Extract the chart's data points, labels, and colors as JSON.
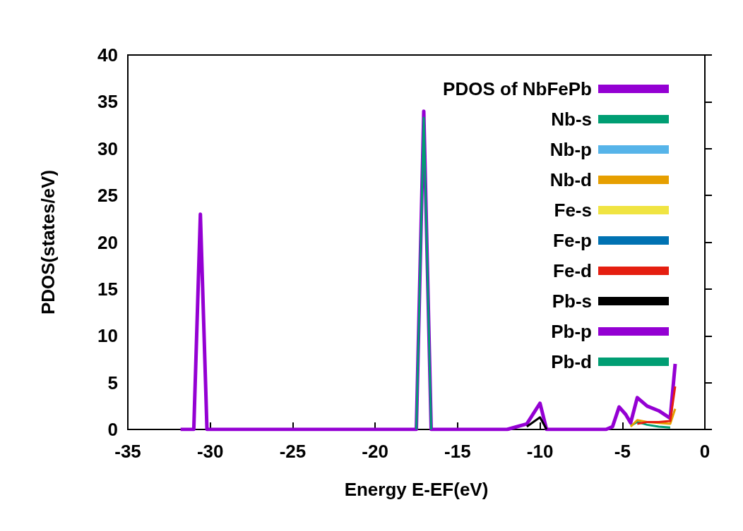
{
  "chart_data": {
    "type": "line",
    "xlabel": "Energy E-EF(eV)",
    "ylabel": "PDOS(states/eV)",
    "x": [
      -31.8,
      -31,
      -30.6,
      -30.2,
      -29.5,
      -17.5,
      -17.05,
      -16.6,
      -12,
      -10.8,
      -10,
      -9.6,
      -9,
      -6,
      -5.6,
      -5.2,
      -4.8,
      -4.5,
      -4.1,
      -3.5,
      -2.8,
      -2.1,
      -1.8
    ],
    "series": [
      {
        "name": "PDOS of NbFePb",
        "color": "#9400d3",
        "values": [
          0,
          0,
          23,
          0,
          0,
          0,
          34,
          0,
          0,
          0.6,
          2.8,
          0,
          0,
          0,
          0.3,
          2.4,
          1.6,
          0.7,
          3.4,
          2.5,
          2.0,
          1.2,
          7.0
        ]
      },
      {
        "name": "Nb-s",
        "color": "#009e73",
        "values": [
          null,
          null,
          null,
          null,
          null,
          null,
          null,
          null,
          null,
          null,
          null,
          null,
          null,
          null,
          null,
          null,
          null,
          0.4,
          0.8,
          0.5,
          0.3,
          0.2,
          null
        ]
      },
      {
        "name": "Nb-p",
        "color": "#56b4e9",
        "values": [
          null,
          null,
          null,
          null,
          null,
          null,
          null,
          null,
          null,
          null,
          null,
          null,
          null,
          null,
          null,
          null,
          null,
          null,
          null,
          null,
          null,
          null,
          null
        ]
      },
      {
        "name": "Nb-d",
        "color": "#e69f00",
        "values": [
          null,
          null,
          null,
          null,
          null,
          null,
          null,
          null,
          null,
          null,
          null,
          null,
          null,
          null,
          null,
          null,
          null,
          0.3,
          1.0,
          0.8,
          0.7,
          0.6,
          2.2
        ]
      },
      {
        "name": "Fe-s",
        "color": "#f0e442",
        "values": [
          null,
          null,
          null,
          null,
          null,
          null,
          null,
          null,
          null,
          null,
          null,
          null,
          null,
          null,
          null,
          null,
          null,
          null,
          null,
          null,
          null,
          null,
          null
        ]
      },
      {
        "name": "Fe-p",
        "color": "#0072b2",
        "values": [
          null,
          null,
          null,
          null,
          null,
          null,
          null,
          null,
          null,
          null,
          null,
          null,
          null,
          null,
          null,
          null,
          null,
          null,
          null,
          null,
          null,
          null,
          null
        ]
      },
      {
        "name": "Fe-d",
        "color": "#e51e10",
        "values": [
          null,
          null,
          null,
          null,
          null,
          null,
          null,
          null,
          null,
          null,
          null,
          null,
          null,
          null,
          null,
          null,
          null,
          null,
          0.6,
          0.8,
          0.8,
          0.9,
          4.6
        ]
      },
      {
        "name": "Pb-s",
        "color": "#000000",
        "values": [
          null,
          null,
          null,
          null,
          null,
          null,
          null,
          null,
          null,
          0.3,
          1.3,
          0,
          null,
          null,
          null,
          null,
          null,
          null,
          null,
          null,
          null,
          null,
          null
        ]
      },
      {
        "name": "Pb-p",
        "color": "#9400d3",
        "values": [
          null,
          null,
          null,
          null,
          null,
          null,
          null,
          null,
          null,
          null,
          null,
          null,
          null,
          null,
          null,
          null,
          null,
          null,
          null,
          null,
          null,
          null,
          null
        ]
      },
      {
        "name": "Pb-d",
        "color": "#009e73",
        "values": [
          null,
          null,
          null,
          null,
          null,
          0,
          33.3,
          0,
          null,
          null,
          null,
          null,
          null,
          null,
          null,
          null,
          null,
          null,
          null,
          null,
          null,
          null,
          null
        ]
      }
    ],
    "xlim": [
      -35,
      0
    ],
    "xticks": [
      -35,
      -30,
      -25,
      -20,
      -15,
      -10,
      -5,
      0
    ],
    "ylim": [
      0,
      40
    ],
    "yticks": [
      0,
      5,
      10,
      15,
      20,
      25,
      30,
      35,
      40
    ],
    "grid": false,
    "legend": "top right",
    "marker": "none",
    "line_style": "solid"
  }
}
